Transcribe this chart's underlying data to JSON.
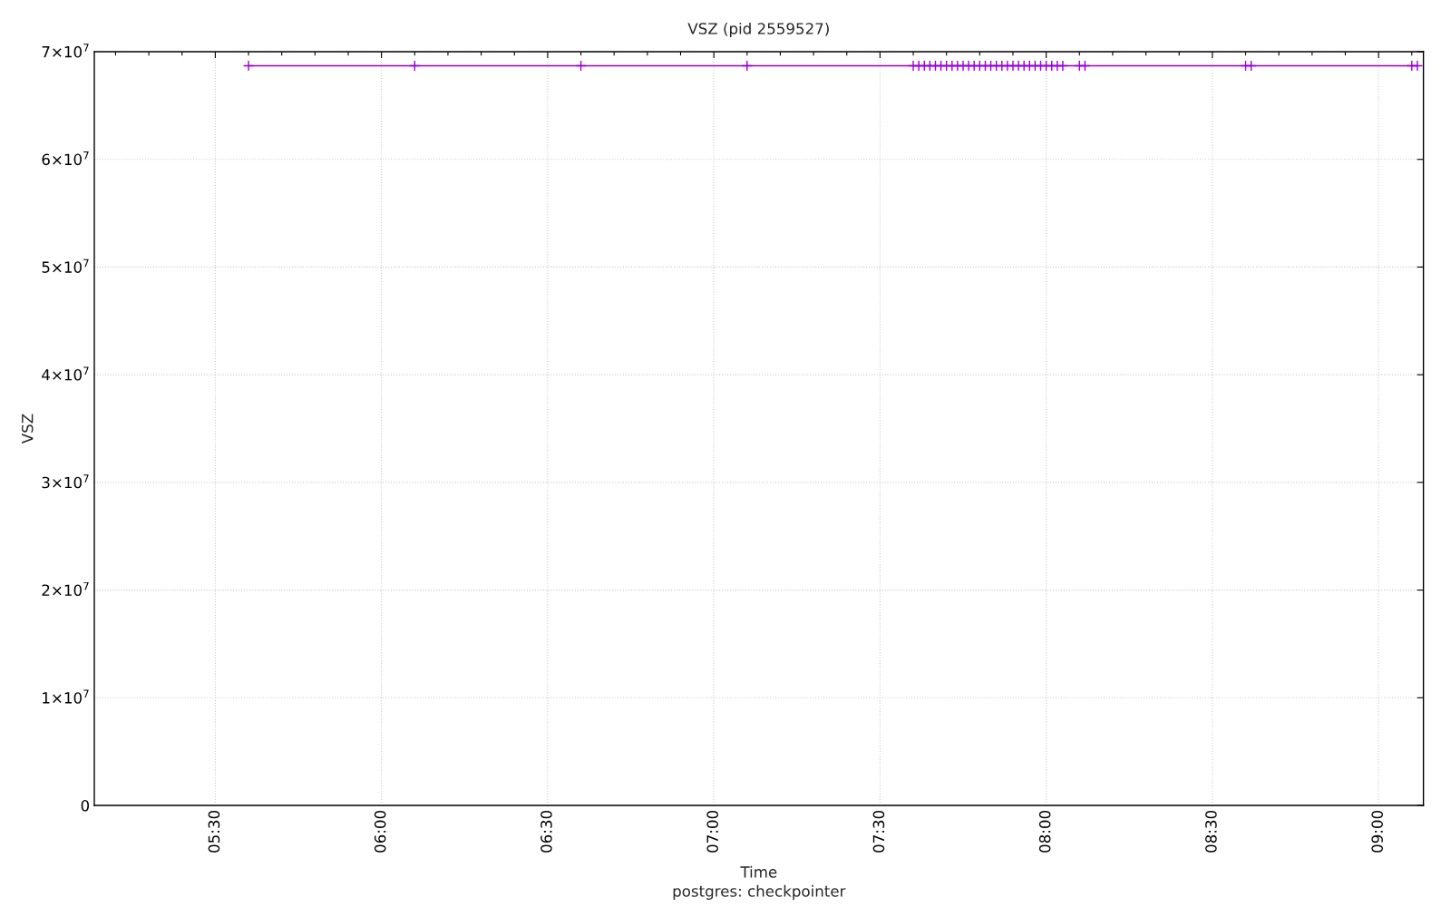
{
  "chart_data": {
    "type": "line",
    "title": "VSZ (pid 2559527)",
    "xlabel": "Time",
    "ylabel": "VSZ",
    "annotations": [
      "postgres: checkpointer"
    ],
    "x": [
      5.6,
      6.1,
      6.6,
      7.1,
      7.6,
      7.6167,
      7.6333,
      7.65,
      7.6667,
      7.6833,
      7.7,
      7.7167,
      7.7333,
      7.75,
      7.7667,
      7.7833,
      7.8,
      7.8167,
      7.8333,
      7.85,
      7.8667,
      7.8833,
      7.9,
      7.9167,
      7.9333,
      7.95,
      7.9667,
      7.9833,
      8.0,
      8.0167,
      8.0333,
      8.05,
      8.1,
      8.1167,
      8.6,
      8.6167,
      9.1,
      9.1167
    ],
    "series": [
      {
        "color": "#9400d3",
        "values": [
          68700000,
          68700000,
          68700000,
          68700000,
          68700000,
          68700000,
          68700000,
          68700000,
          68700000,
          68700000,
          68700000,
          68700000,
          68700000,
          68700000,
          68700000,
          68700000,
          68700000,
          68700000,
          68700000,
          68700000,
          68700000,
          68700000,
          68700000,
          68700000,
          68700000,
          68700000,
          68700000,
          68700000,
          68700000,
          68700000,
          68700000,
          68700000,
          68700000,
          68700000,
          68700000,
          68700000,
          68700000,
          68700000
        ]
      }
    ],
    "marker": "cross",
    "line_style": "solid",
    "grid": true,
    "xlim": [
      5.136,
      9.135
    ],
    "xticks": [
      {
        "value": 5.2,
        "label": null
      },
      {
        "value": 5.3,
        "label": null
      },
      {
        "value": 5.4,
        "label": null
      },
      {
        "value": 5.5,
        "label": "05:30"
      },
      {
        "value": 5.6,
        "label": null
      },
      {
        "value": 5.7,
        "label": null
      },
      {
        "value": 5.8,
        "label": null
      },
      {
        "value": 5.9,
        "label": null
      },
      {
        "value": 6.0,
        "label": "06:00"
      },
      {
        "value": 6.1,
        "label": null
      },
      {
        "value": 6.2,
        "label": null
      },
      {
        "value": 6.3,
        "label": null
      },
      {
        "value": 6.4,
        "label": null
      },
      {
        "value": 6.5,
        "label": "06:30"
      },
      {
        "value": 6.6,
        "label": null
      },
      {
        "value": 6.7,
        "label": null
      },
      {
        "value": 6.8,
        "label": null
      },
      {
        "value": 6.9,
        "label": null
      },
      {
        "value": 7.0,
        "label": "07:00"
      },
      {
        "value": 7.1,
        "label": null
      },
      {
        "value": 7.2,
        "label": null
      },
      {
        "value": 7.3,
        "label": null
      },
      {
        "value": 7.4,
        "label": null
      },
      {
        "value": 7.5,
        "label": "07:30"
      },
      {
        "value": 7.6,
        "label": null
      },
      {
        "value": 7.7,
        "label": null
      },
      {
        "value": 7.8,
        "label": null
      },
      {
        "value": 7.9,
        "label": null
      },
      {
        "value": 8.0,
        "label": "08:00"
      },
      {
        "value": 8.1,
        "label": null
      },
      {
        "value": 8.2,
        "label": null
      },
      {
        "value": 8.3,
        "label": null
      },
      {
        "value": 8.4,
        "label": null
      },
      {
        "value": 8.5,
        "label": "08:30"
      },
      {
        "value": 8.6,
        "label": null
      },
      {
        "value": 8.7,
        "label": null
      },
      {
        "value": 8.8,
        "label": null
      },
      {
        "value": 8.9,
        "label": null
      },
      {
        "value": 9.0,
        "label": "09:00"
      },
      {
        "value": 9.1,
        "label": null
      }
    ],
    "ylim": [
      0,
      70000000
    ],
    "yticks": [
      {
        "value": 0,
        "label": "0"
      },
      {
        "value": 10000000,
        "label": "1×10$^{7}$"
      },
      {
        "value": 20000000,
        "label": "2×10$^{7}$"
      },
      {
        "value": 30000000,
        "label": "3×10$^{7}$"
      },
      {
        "value": 40000000,
        "label": "4×10$^{7}$"
      },
      {
        "value": 50000000,
        "label": "5×10$^{7}$"
      },
      {
        "value": 60000000,
        "label": "6×10$^{7}$"
      },
      {
        "value": 70000000,
        "label": "7×10$^{7}$"
      }
    ]
  }
}
